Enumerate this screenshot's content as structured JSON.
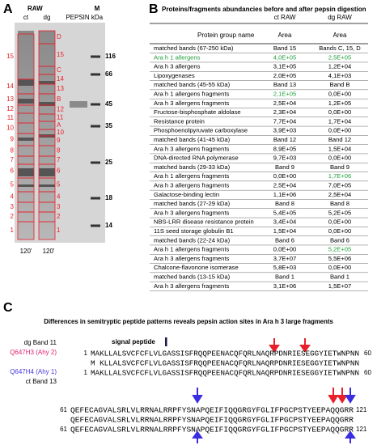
{
  "panel_a": {
    "label": "A",
    "raw": "RAW",
    "lanes": [
      "ct",
      "dg"
    ],
    "pepsin": "PEPSIN",
    "marker": "M",
    "kda": "kDa",
    "marker_bands": [
      116,
      66,
      45,
      35,
      25,
      18,
      14
    ],
    "ct_bands": [
      "15",
      "14",
      "13",
      "12",
      "11",
      "10",
      "9",
      "8",
      "7",
      "6",
      "5",
      "4",
      "3",
      "2",
      "1"
    ],
    "dg_bands": [
      "D",
      "15",
      "C",
      "14",
      "13",
      "B",
      "12",
      "11",
      "A",
      "10",
      "9",
      "8",
      "7",
      "6",
      "5",
      "4",
      "3",
      "2",
      "1"
    ],
    "times": [
      "120'",
      "120'"
    ]
  },
  "panel_b": {
    "label": "B",
    "title": "Proteins/fragments abundancies before and after pepsin digestion",
    "header": [
      [
        "",
        "ct RAW",
        "dg RAW"
      ],
      [
        "Protein group name",
        "Area",
        "Area"
      ]
    ],
    "rows": [
      {
        "cells": [
          "matched bands (67-250 kDa)",
          "Band 15",
          "Bands C, 15, D"
        ]
      },
      {
        "cells": [
          "Ara h 1 allergens",
          "4,0E+05",
          "2,5E+05"
        ],
        "green": [
          0,
          1,
          2
        ]
      },
      {
        "cells": [
          "Ara h 3 allergens",
          "3,1E+05",
          "1,2E+04"
        ]
      },
      {
        "cells": [
          "Lipoxygenases",
          "2,0E+05",
          "4,1E+03"
        ]
      },
      {
        "cells": [
          "matched bands (45-55 kDa)",
          "Band 13",
          "Band B"
        ]
      },
      {
        "cells": [
          "Ara h 1 allergens fragments",
          "2,1E+05",
          "0,0E+00"
        ],
        "green": [
          1
        ]
      },
      {
        "cells": [
          "Ara h 3 allergens fragments",
          "2,5E+04",
          "1,2E+05"
        ]
      },
      {
        "cells": [
          "Fructose-bisphosphate aldolase",
          "2,3E+04",
          "0,0E+00"
        ]
      },
      {
        "cells": [
          "Resistance protein",
          "7,7E+04",
          "1,7E+04"
        ]
      },
      {
        "cells": [
          "Phosphoenolpyruvate carboxylase",
          "3,9E+03",
          "0,0E+00"
        ]
      },
      {
        "cells": [
          "matched bands (41-45 kDa)",
          "Band 12",
          "Band 12"
        ]
      },
      {
        "cells": [
          "Ara h 3 allergens fragments",
          "8,9E+05",
          "1,5E+04"
        ]
      },
      {
        "cells": [
          "DNA-directed RNA polymerase",
          "9,7E+03",
          "0,0E+00"
        ]
      },
      {
        "cells": [
          "matched bands (29-33 kDa)",
          "Band 9",
          "Band 9"
        ]
      },
      {
        "cells": [
          "Ara h 1 allergens fragments",
          "0,0E+00",
          "1,7E+06"
        ],
        "green": [
          2
        ]
      },
      {
        "cells": [
          "Ara h 3 allergens fragments",
          "2,5E+04",
          "7,0E+05"
        ]
      },
      {
        "cells": [
          "Galactose-binding lectin",
          "1,1E+06",
          "2,5E+04"
        ]
      },
      {
        "cells": [
          "matched bands (27-29 kDa)",
          "Band 8",
          "Band 8"
        ]
      },
      {
        "cells": [
          "Ara h 3 allergens fragments",
          "5,4E+05",
          "5,2E+05"
        ]
      },
      {
        "cells": [
          "NBS-LRR disease resistance protein",
          "3,4E+04",
          "0,0E+00"
        ]
      },
      {
        "cells": [
          "11S seed storage globulin B1",
          "1,5E+04",
          "0,0E+00"
        ]
      },
      {
        "cells": [
          "matched bands (22-24 kDa)",
          "Band 6",
          "Band 6"
        ]
      },
      {
        "cells": [
          "Ara h 1 allergens fragments",
          "0,0E+00",
          "5,2E+05"
        ],
        "green": [
          2
        ]
      },
      {
        "cells": [
          "Ara h 3 allergens fragments",
          "3,7E+07",
          "5,5E+06"
        ]
      },
      {
        "cells": [
          "Chalcone-flavonone isomerase",
          "5,8E+03",
          "0,0E+00"
        ]
      },
      {
        "cells": [
          "matched bands (13-15 kDa)",
          "Band 1",
          "Band 1"
        ]
      },
      {
        "cells": [
          "Ara h 3 allergens fragments",
          "3,1E+06",
          "1,5E+07"
        ]
      }
    ]
  },
  "panel_c": {
    "label": "C",
    "title": "Differences in semitryptic peptide patterns reveals pepsin action sites in Ara h 3 large fragments",
    "dg_band": "dg Band 11",
    "ct_band": "ct Band 13",
    "signal_peptide": "signal peptide",
    "seq_names": [
      "Q647H3 (Ahy 2)",
      "Q647H4 (Ahy 1)"
    ],
    "blocks": [
      {
        "start": 1,
        "end": 60,
        "lines": [
          "MAKLLALSVCFCFLVLGASSISFRQQPEENACQFQRLNAQRPDNRIESEGGYIETWNPNN",
          "M KLLALSVCFCFLVLGASSISFRQQPEENACQFQRLNAQRPDNRIESEGGYIETWNPNN",
          "MAKLLALSVCFCFLVLGASSISFRQQPEENACQFQRLNAQRPDNRIESEGGYIETWNPNN"
        ]
      },
      {
        "start": 61,
        "end": 121,
        "lines": [
          "QEFECAGVALSRLVLRRNALRRPFYSNAPQEIFIQQGRGYFGLIFPGCPSTYEEPAQQGRR",
          "QEFECAGVALSRLVLRRNALRRPFYSNAPQEIFIQQGRGYFGLIFPGCPSTYEEPAQQGRR",
          "QEFECAGVALSRLVLRRNALRRPFYSNAPQEIFIQQGRGYFGLIFPGCPSTYEEPAQQGRR"
        ]
      }
    ]
  }
}
